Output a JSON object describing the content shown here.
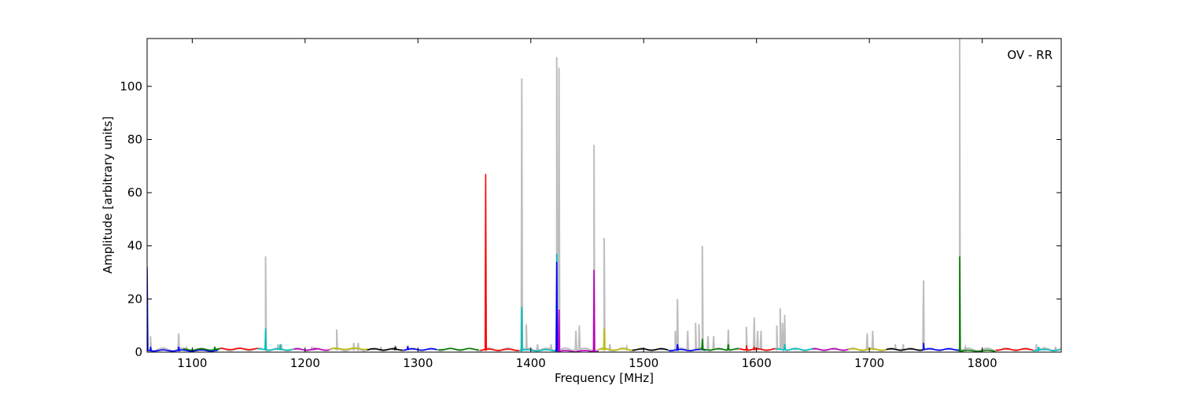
{
  "chart_data": {
    "type": "line",
    "title": "",
    "annotation": "OV - RR",
    "xlabel": "Frequency [MHz]",
    "ylabel": "Amplitude [arbitrary units]",
    "xlim": [
      1060,
      1870
    ],
    "ylim": [
      0,
      118
    ],
    "xticks": [
      1100,
      1200,
      1300,
      1400,
      1500,
      1600,
      1700,
      1800
    ],
    "yticks": [
      0,
      20,
      40,
      60,
      80,
      100
    ],
    "grid": false,
    "legend": "none",
    "background_series": {
      "color": "#bebebe",
      "peaks": [
        [
          1060,
          30
        ],
        [
          1063,
          6
        ],
        [
          1088,
          7
        ],
        [
          1095,
          2
        ],
        [
          1165,
          36
        ],
        [
          1176,
          3
        ],
        [
          1179,
          3
        ],
        [
          1206,
          2
        ],
        [
          1228,
          8.5
        ],
        [
          1243,
          3.5
        ],
        [
          1247,
          3.5
        ],
        [
          1267,
          2
        ],
        [
          1280,
          2.5
        ],
        [
          1291,
          2.5
        ],
        [
          1392,
          103
        ],
        [
          1396,
          10.5
        ],
        [
          1406,
          3
        ],
        [
          1418,
          3
        ],
        [
          1423,
          111
        ],
        [
          1425,
          107
        ],
        [
          1440,
          8
        ],
        [
          1443,
          10
        ],
        [
          1456,
          78
        ],
        [
          1465,
          43
        ],
        [
          1470,
          3
        ],
        [
          1485,
          2
        ],
        [
          1528,
          8
        ],
        [
          1530,
          20
        ],
        [
          1539,
          8
        ],
        [
          1546,
          11
        ],
        [
          1549,
          10.5
        ],
        [
          1552,
          40
        ],
        [
          1557,
          6
        ],
        [
          1562,
          6
        ],
        [
          1575,
          8.5
        ],
        [
          1591,
          9.5
        ],
        [
          1598,
          13
        ],
        [
          1601,
          8
        ],
        [
          1604,
          8
        ],
        [
          1618,
          10
        ],
        [
          1621,
          16.5
        ],
        [
          1623,
          11
        ],
        [
          1625,
          14
        ],
        [
          1698,
          7
        ],
        [
          1703,
          8
        ],
        [
          1723,
          3
        ],
        [
          1730,
          3
        ],
        [
          1748,
          27
        ],
        [
          1780,
          118
        ],
        [
          1785,
          2
        ],
        [
          1848,
          3
        ],
        [
          1855,
          2
        ],
        [
          1865,
          2
        ]
      ]
    },
    "segments": [
      {
        "color": "#0000ff",
        "x": [
          1060,
          1123
        ],
        "peaks": [
          [
            1060,
            32
          ],
          [
            1063,
            2
          ],
          [
            1088,
            2
          ]
        ],
        "base": 0.6
      },
      {
        "color": "#008000",
        "x": [
          1092,
          1125
        ],
        "peaks": [
          [
            1120,
            2
          ]
        ],
        "base": 1.0
      },
      {
        "color": "#ff0000",
        "x": [
          1125,
          1158
        ],
        "peaks": [],
        "base": 1.2
      },
      {
        "color": "#00bfbf",
        "x": [
          1158,
          1190
        ],
        "peaks": [
          [
            1165,
            9
          ],
          [
            1178,
            3
          ]
        ],
        "base": 1.0
      },
      {
        "color": "#bf00bf",
        "x": [
          1190,
          1222
        ],
        "peaks": [
          [
            1208,
            1.6
          ]
        ],
        "base": 1.0
      },
      {
        "color": "#bfbf00",
        "x": [
          1222,
          1255
        ],
        "peaks": [
          [
            1228,
            1.5
          ]
        ],
        "base": 1.3
      },
      {
        "color": "#000000",
        "x": [
          1255,
          1287
        ],
        "peaks": [
          [
            1280,
            2
          ]
        ],
        "base": 1.0
      },
      {
        "color": "#0000ff",
        "x": [
          1287,
          1318
        ],
        "peaks": [
          [
            1291,
            2.2
          ]
        ],
        "base": 1.0
      },
      {
        "color": "#008000",
        "x": [
          1318,
          1355
        ],
        "peaks": [],
        "base": 1.1
      },
      {
        "color": "#ff0000",
        "x": [
          1355,
          1390
        ],
        "peaks": [
          [
            1360,
            67
          ]
        ],
        "base": 0.9
      },
      {
        "color": "#00bfbf",
        "x": [
          1390,
          1424
        ],
        "peaks": [
          [
            1392,
            17
          ],
          [
            1423,
            37
          ]
        ],
        "base": 0.7
      },
      {
        "color": "#0000ff",
        "x": [
          1422,
          1426
        ],
        "peaks": [
          [
            1423,
            34
          ]
        ],
        "base": 0.5
      },
      {
        "color": "#bf00bf",
        "x": [
          1424,
          1460
        ],
        "peaks": [
          [
            1425,
            16
          ],
          [
            1456,
            31
          ]
        ],
        "base": 0.4
      },
      {
        "color": "#bfbf00",
        "x": [
          1460,
          1490
        ],
        "peaks": [
          [
            1465,
            9
          ]
        ],
        "base": 1.0
      },
      {
        "color": "#000000",
        "x": [
          1490,
          1522
        ],
        "peaks": [],
        "base": 1.0
      },
      {
        "color": "#0000ff",
        "x": [
          1522,
          1555
        ],
        "peaks": [
          [
            1530,
            3
          ]
        ],
        "base": 0.8
      },
      {
        "color": "#008000",
        "x": [
          1550,
          1585
        ],
        "peaks": [
          [
            1552,
            5
          ],
          [
            1575,
            3
          ]
        ],
        "base": 1.0
      },
      {
        "color": "#ff0000",
        "x": [
          1585,
          1617
        ],
        "peaks": [
          [
            1591,
            2.5
          ],
          [
            1598,
            2
          ]
        ],
        "base": 1.0
      },
      {
        "color": "#00bfbf",
        "x": [
          1617,
          1650
        ],
        "peaks": [
          [
            1625,
            3
          ]
        ],
        "base": 1.0
      },
      {
        "color": "#bf00bf",
        "x": [
          1650,
          1682
        ],
        "peaks": [],
        "base": 1.0
      },
      {
        "color": "#bfbf00",
        "x": [
          1682,
          1715
        ],
        "peaks": [],
        "base": 1.0
      },
      {
        "color": "#000000",
        "x": [
          1715,
          1748
        ],
        "peaks": [],
        "base": 1.0
      },
      {
        "color": "#0000ff",
        "x": [
          1748,
          1780
        ],
        "peaks": [
          [
            1748,
            3.5
          ]
        ],
        "base": 1.0
      },
      {
        "color": "#008000",
        "x": [
          1780,
          1812
        ],
        "peaks": [
          [
            1780,
            36
          ]
        ],
        "base": 0.5
      },
      {
        "color": "#ff0000",
        "x": [
          1812,
          1845
        ],
        "peaks": [],
        "base": 1.0
      },
      {
        "color": "#00bfbf",
        "x": [
          1845,
          1870
        ],
        "peaks": [
          [
            1850,
            2
          ]
        ],
        "base": 0.8
      }
    ]
  }
}
